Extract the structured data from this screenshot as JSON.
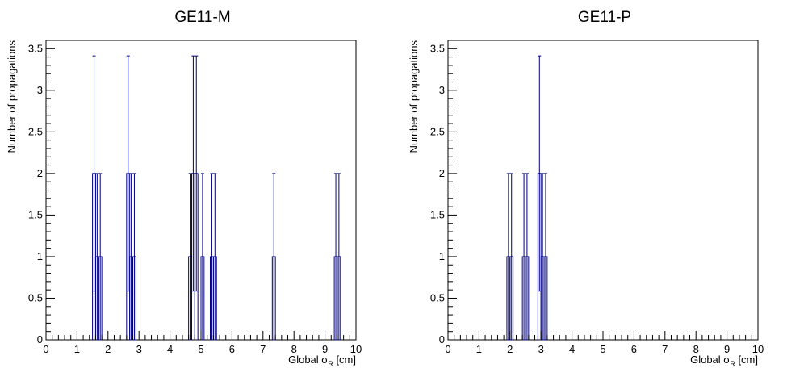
{
  "chart_data": [
    {
      "type": "bar",
      "title": "GE11-M",
      "xlabel": {
        "prefix": "Global ",
        "symbol": "σ",
        "subscript": "R",
        "suffix": " [cm]"
      },
      "ylabel": "Number of propagations",
      "xlim": [
        0,
        10
      ],
      "ylim": [
        0,
        3.6
      ],
      "xticks": [
        "0",
        "1",
        "2",
        "3",
        "4",
        "5",
        "6",
        "7",
        "8",
        "9",
        "10"
      ],
      "yticks": [
        "0",
        "0.5",
        "1",
        "1.5",
        "2",
        "2.5",
        "3",
        "3.5"
      ],
      "bin_width": 0.1,
      "grid": false,
      "style": "histogram-with-poisson-errors",
      "bins": [
        {
          "x": 1.55,
          "y": 2
        },
        {
          "x": 1.65,
          "y": 1
        },
        {
          "x": 1.75,
          "y": 1
        },
        {
          "x": 2.65,
          "y": 2
        },
        {
          "x": 2.75,
          "y": 1
        },
        {
          "x": 2.85,
          "y": 1
        },
        {
          "x": 4.65,
          "y": 1
        },
        {
          "x": 4.75,
          "y": 2
        },
        {
          "x": 4.85,
          "y": 2
        },
        {
          "x": 5.05,
          "y": 1
        },
        {
          "x": 5.35,
          "y": 1
        },
        {
          "x": 5.45,
          "y": 1
        },
        {
          "x": 7.35,
          "y": 1
        },
        {
          "x": 9.35,
          "y": 1
        },
        {
          "x": 9.45,
          "y": 1
        }
      ]
    },
    {
      "type": "bar",
      "title": "GE11-P",
      "xlabel": {
        "prefix": "Global ",
        "symbol": "σ",
        "subscript": "R",
        "suffix": " [cm]"
      },
      "ylabel": "Number of propagations",
      "xlim": [
        0,
        10
      ],
      "ylim": [
        0,
        3.6
      ],
      "xticks": [
        "0",
        "1",
        "2",
        "3",
        "4",
        "5",
        "6",
        "7",
        "8",
        "9",
        "10"
      ],
      "yticks": [
        "0",
        "0.5",
        "1",
        "1.5",
        "2",
        "2.5",
        "3",
        "3.5"
      ],
      "bin_width": 0.1,
      "grid": false,
      "style": "histogram-with-poisson-errors",
      "bins": [
        {
          "x": 1.95,
          "y": 1
        },
        {
          "x": 2.05,
          "y": 1
        },
        {
          "x": 2.45,
          "y": 1
        },
        {
          "x": 2.55,
          "y": 1
        },
        {
          "x": 2.95,
          "y": 2
        },
        {
          "x": 3.05,
          "y": 1
        },
        {
          "x": 3.15,
          "y": 1
        }
      ]
    }
  ],
  "colors": {
    "histogram": "#000080",
    "axes": "#000000",
    "background": "#ffffff"
  }
}
